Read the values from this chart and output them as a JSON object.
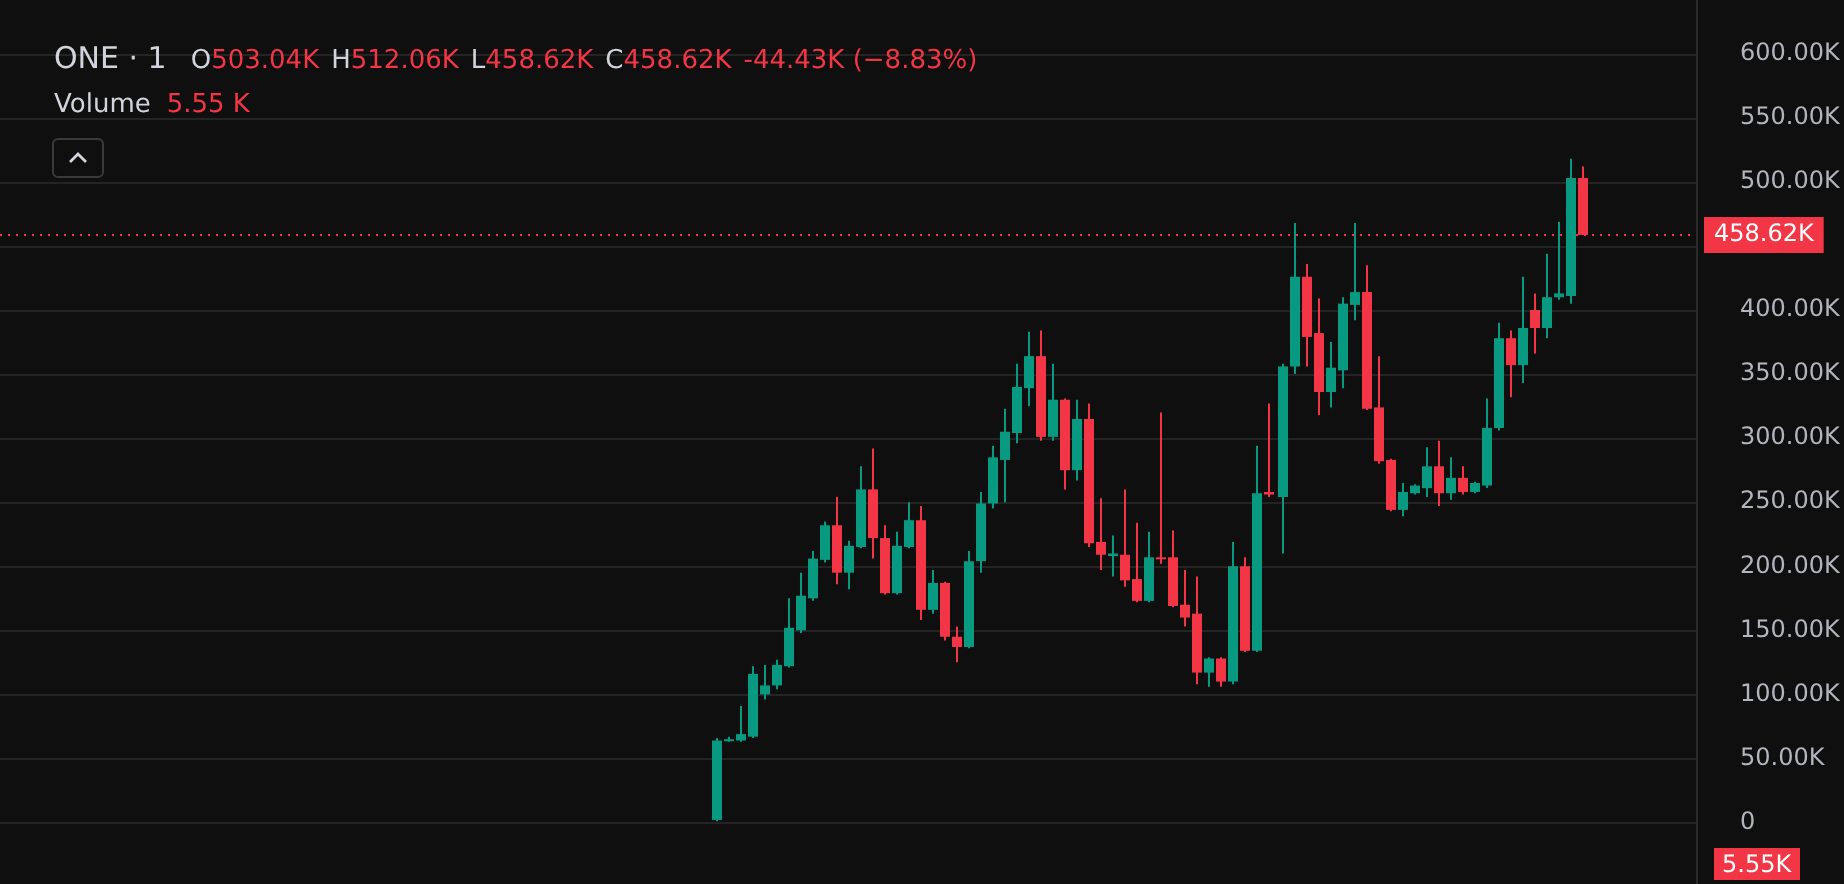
{
  "chart_data": {
    "type": "candlestick",
    "title": "ONE · 1",
    "categories": [
      null,
      null,
      null,
      null,
      null,
      null,
      null,
      null,
      null,
      null,
      null,
      null,
      null,
      null,
      null,
      null,
      null,
      null,
      null,
      null,
      null,
      null,
      null,
      null,
      null,
      null,
      null,
      null,
      null,
      null,
      null,
      null,
      null,
      null,
      null,
      null,
      null,
      null,
      null,
      null,
      null,
      null,
      null,
      null,
      null,
      null,
      null,
      null,
      null,
      null,
      null,
      null,
      null,
      null,
      null,
      null,
      null,
      null,
      null,
      null,
      null,
      null,
      null,
      null,
      null,
      null,
      null,
      null,
      null,
      null,
      null,
      null,
      null,
      null,
      null,
      null,
      null,
      null,
      null,
      null,
      null,
      null,
      null,
      null,
      null,
      null,
      null,
      null,
      null,
      null,
      null,
      null,
      null,
      null,
      null,
      null,
      null,
      null,
      null,
      null,
      null,
      null,
      null,
      null,
      null,
      null,
      null,
      null,
      null,
      null,
      null,
      null,
      null,
      null,
      null,
      null,
      null,
      null,
      null,
      null,
      null,
      null,
      null,
      null,
      null,
      null,
      null,
      null,
      null,
      null,
      null,
      null,
      null,
      null,
      null,
      null,
      null,
      null,
      null,
      null,
      null
    ],
    "ohlc": [
      null,
      null,
      null,
      null,
      null,
      null,
      null,
      null,
      null,
      null,
      null,
      null,
      null,
      null,
      null,
      null,
      null,
      null,
      null,
      null,
      null,
      null,
      null,
      null,
      null,
      null,
      null,
      null,
      null,
      null,
      null,
      null,
      null,
      null,
      null,
      null,
      null,
      null,
      null,
      null,
      null,
      null,
      null,
      null,
      null,
      null,
      null,
      null,
      null,
      null,
      null,
      null,
      null,
      null,
      null,
      null,
      null,
      null,
      null,
      [
        2,
        66,
        1,
        64
      ],
      [
        64,
        67,
        63,
        65
      ],
      [
        64,
        91,
        63,
        69
      ],
      [
        67,
        122,
        66,
        116
      ],
      [
        100,
        123,
        96,
        107
      ],
      [
        107,
        127,
        104,
        123
      ],
      [
        122,
        175,
        121,
        152
      ],
      [
        150,
        195,
        148,
        177
      ],
      [
        175,
        212,
        173,
        206
      ],
      [
        205,
        235,
        203,
        232
      ],
      [
        232,
        254,
        186,
        195
      ],
      [
        195,
        220,
        182,
        216
      ],
      [
        215,
        278,
        214,
        260
      ],
      [
        260,
        292,
        206,
        222
      ],
      [
        222,
        232,
        178,
        179
      ],
      [
        179,
        227,
        178,
        216
      ],
      [
        215,
        250,
        214,
        236
      ],
      [
        236,
        247,
        158,
        166
      ],
      [
        166,
        197,
        163,
        187
      ],
      [
        187,
        188,
        142,
        145
      ],
      [
        145,
        153,
        125,
        137
      ],
      [
        137,
        212,
        136,
        204
      ],
      [
        204,
        258,
        195,
        249
      ],
      [
        249,
        294,
        245,
        285
      ],
      [
        283,
        323,
        250,
        305
      ],
      [
        304,
        358,
        296,
        340
      ],
      [
        339,
        383,
        325,
        364
      ],
      [
        364,
        384,
        298,
        301
      ],
      [
        301,
        358,
        298,
        330
      ],
      [
        330,
        331,
        260,
        275
      ],
      [
        275,
        330,
        267,
        315
      ],
      [
        315,
        327,
        215,
        218
      ],
      [
        219,
        253,
        197,
        209
      ],
      [
        208,
        224,
        192,
        210
      ],
      [
        209,
        260,
        184,
        189
      ],
      [
        190,
        234,
        172,
        173
      ],
      [
        173,
        227,
        172,
        207
      ],
      [
        207,
        320,
        202,
        206
      ],
      [
        207,
        228,
        168,
        169
      ],
      [
        170,
        197,
        153,
        160
      ],
      [
        163,
        192,
        108,
        117
      ],
      [
        117,
        129,
        106,
        128
      ],
      [
        128,
        129,
        106,
        110
      ],
      [
        110,
        219,
        108,
        200
      ],
      [
        200,
        207,
        133,
        134
      ],
      [
        134,
        294,
        133,
        257
      ],
      [
        258,
        327,
        254,
        256
      ],
      [
        254,
        358,
        210,
        356
      ],
      [
        356,
        468,
        350,
        426
      ],
      [
        426,
        436,
        356,
        379
      ],
      [
        382,
        409,
        318,
        336
      ],
      [
        336,
        375,
        324,
        355
      ],
      [
        353,
        410,
        339,
        405
      ],
      [
        404,
        468,
        392,
        414
      ],
      [
        414,
        435,
        322,
        323
      ],
      [
        324,
        364,
        280,
        282
      ],
      [
        283,
        284,
        243,
        244
      ],
      [
        244,
        265,
        239,
        258
      ],
      [
        257,
        264,
        256,
        263
      ],
      [
        261,
        293,
        254,
        278
      ],
      [
        278,
        298,
        247,
        257
      ],
      [
        257,
        285,
        252,
        269
      ],
      [
        269,
        278,
        256,
        258
      ],
      [
        258,
        266,
        257,
        265
      ],
      [
        263,
        331,
        261,
        308
      ],
      [
        308,
        390,
        306,
        378
      ],
      [
        378,
        384,
        332,
        357
      ],
      [
        357,
        426,
        343,
        386
      ],
      [
        400,
        413,
        366,
        386
      ],
      [
        386,
        444,
        378,
        410
      ],
      [
        410,
        469,
        408,
        413
      ],
      [
        411,
        518,
        405,
        503
      ],
      [
        503.04,
        512.06,
        458.62,
        458.62
      ],
      null,
      null,
      null,
      null,
      null,
      null,
      null,
      null,
      null
    ],
    "ylim": [
      -48,
      642
    ],
    "yticks": [
      0,
      {
        "value": 50,
        "label": "50.00K"
      },
      {
        "value": 100,
        "label": "100.00K"
      },
      {
        "value": 150,
        "label": "150.00K"
      },
      {
        "value": 200,
        "label": "200.00K"
      },
      {
        "value": 250,
        "label": "250.00K"
      },
      {
        "value": 300,
        "label": "300.00K"
      },
      {
        "value": 350,
        "label": "350.00K"
      },
      {
        "value": 400,
        "label": "400.00K"
      },
      {
        "value": 450,
        "label": null
      },
      {
        "value": 500,
        "label": "500.00K"
      },
      {
        "value": 550,
        "label": "550.00K"
      },
      {
        "value": 600,
        "label": "600.00K"
      }
    ],
    "grid": "y",
    "legend": false,
    "ref_lines": [
      {
        "axis": "y",
        "value": 458.62,
        "label": "458.62K",
        "color": "#f23645",
        "line_style": "dotted"
      }
    ],
    "annotations": [
      "O503.04K",
      "H512.06K",
      "L458.62K",
      "C458.62K",
      "-44.43K (−8.83%)",
      "Volume",
      "5.55 K",
      "5.55K"
    ]
  }
}
